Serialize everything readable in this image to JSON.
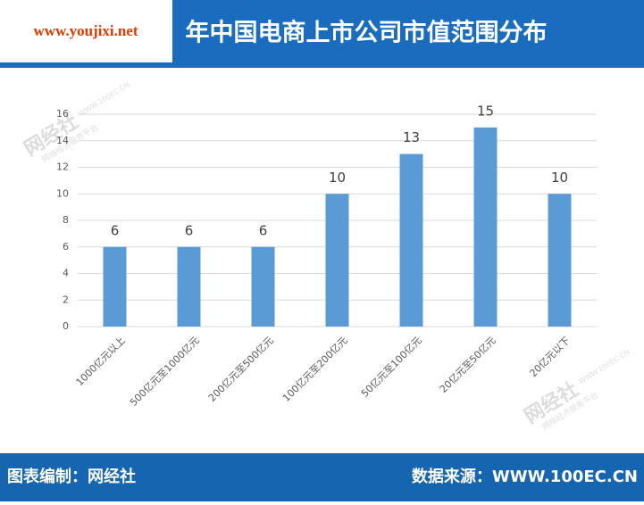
{
  "chart_data": {
    "type": "bar",
    "title": "年中国电商上市公司市值范围分布",
    "watermark": "www.youjixi.net",
    "logo": [
      "网经社",
      "WWW.100EC.CN",
      "网络经济服务平台"
    ],
    "footer_left": "图表编制：网经社",
    "footer_right": "数据来源：WWW.100EC.CN",
    "categories": [
      "1000亿元以上",
      "500亿元至1000亿元",
      "200亿元至500亿元",
      "100亿元至200亿元",
      "50亿元至100亿元",
      "20亿元至50亿元",
      "20亿元以下"
    ],
    "values": [
      6,
      6,
      6,
      10,
      13,
      15,
      10
    ],
    "color": "#5b9bd5",
    "ylim": [
      0,
      16
    ],
    "yticks": [
      0,
      2,
      4,
      6,
      8,
      10,
      12,
      14,
      16
    ],
    "grid": true
  }
}
